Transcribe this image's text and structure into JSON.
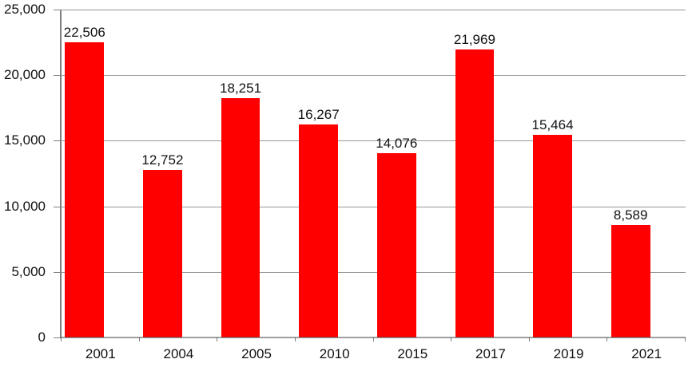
{
  "chart": {
    "background": "#FFFFFF",
    "bar_color": "#FF0000",
    "gridline_color": "#989898",
    "axis_color": "#7F7F7F",
    "text_color": "#111111"
  },
  "chart_data": {
    "type": "bar",
    "categories": [
      "2001",
      "2004",
      "2005",
      "2010",
      "2015",
      "2017",
      "2019",
      "2021"
    ],
    "values": [
      22506,
      12752,
      18251,
      16267,
      14076,
      21969,
      15464,
      8589
    ],
    "value_labels": [
      "22,506",
      "12,752",
      "18,251",
      "16,267",
      "14,076",
      "21,969",
      "15,464",
      "8,589"
    ],
    "series_color": "#FF0000",
    "ylim": [
      0,
      25000
    ],
    "grid": true,
    "legend": false,
    "yticks": [
      {
        "value": 0,
        "label": "0"
      },
      {
        "value": 5000,
        "label": "5,000"
      },
      {
        "value": 10000,
        "label": "10,000"
      },
      {
        "value": 15000,
        "label": "15,000"
      },
      {
        "value": 20000,
        "label": "20,000"
      },
      {
        "value": 25000,
        "label": "25,000"
      }
    ]
  }
}
